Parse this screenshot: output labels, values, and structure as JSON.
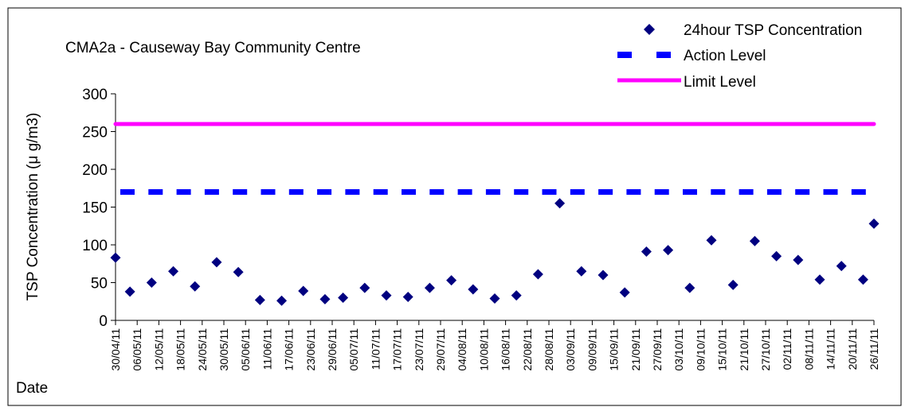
{
  "chart_data": {
    "type": "scatter",
    "title": "CMA2a - Causeway Bay Community Centre",
    "xlabel": "Date",
    "ylabel": "TSP Concentration (μ g/m3)",
    "ylim": [
      0,
      300
    ],
    "yticks": [
      "0",
      "50",
      "100",
      "150",
      "200",
      "250",
      "300"
    ],
    "x_tick_labels": [
      "30/04/11",
      "06/05/11",
      "12/05/11",
      "18/05/11",
      "24/05/11",
      "30/05/11",
      "05/06/11",
      "11/06/11",
      "17/06/11",
      "23/06/11",
      "29/06/11",
      "05/07/11",
      "11/07/11",
      "17/07/11",
      "23/07/11",
      "29/07/11",
      "04/08/11",
      "10/08/11",
      "16/08/11",
      "22/08/11",
      "28/08/11",
      "03/09/11",
      "09/09/11",
      "15/09/11",
      "21/09/11",
      "27/09/11",
      "03/10/11",
      "09/10/11",
      "15/10/11",
      "21/10/11",
      "27/10/11",
      "02/11/11",
      "08/11/11",
      "14/11/11",
      "20/11/11",
      "26/11/11"
    ],
    "legend_position": "top-right",
    "series": [
      {
        "name": "24hour TSP Concentration",
        "marker": "diamond",
        "color": "#000080",
        "x": [
          "30/04/11",
          "04/05/11",
          "10/05/11",
          "16/05/11",
          "22/05/11",
          "28/05/11",
          "03/06/11",
          "09/06/11",
          "15/06/11",
          "21/06/11",
          "27/06/11",
          "02/07/11",
          "08/07/11",
          "14/07/11",
          "20/07/11",
          "26/07/11",
          "01/08/11",
          "07/08/11",
          "13/08/11",
          "19/08/11",
          "25/08/11",
          "31/08/11",
          "06/09/11",
          "12/09/11",
          "18/09/11",
          "24/09/11",
          "30/09/11",
          "06/10/11",
          "12/10/11",
          "18/10/11",
          "24/10/11",
          "30/10/11",
          "05/11/11",
          "11/11/11",
          "17/11/11",
          "23/11/11",
          "26/11/11"
        ],
        "y": [
          83,
          38,
          50,
          65,
          45,
          77,
          64,
          27,
          26,
          39,
          28,
          30,
          43,
          33,
          31,
          43,
          53,
          41,
          29,
          33,
          61,
          155,
          65,
          60,
          37,
          91,
          93,
          43,
          106,
          47,
          105,
          85,
          80,
          54,
          72,
          54,
          128
        ]
      },
      {
        "name": "Action Level",
        "style": "dashed",
        "color": "#0000ff",
        "y_value": 170
      },
      {
        "name": "Limit Level",
        "style": "solid",
        "color": "#ff00ff",
        "y_value": 260
      }
    ]
  }
}
